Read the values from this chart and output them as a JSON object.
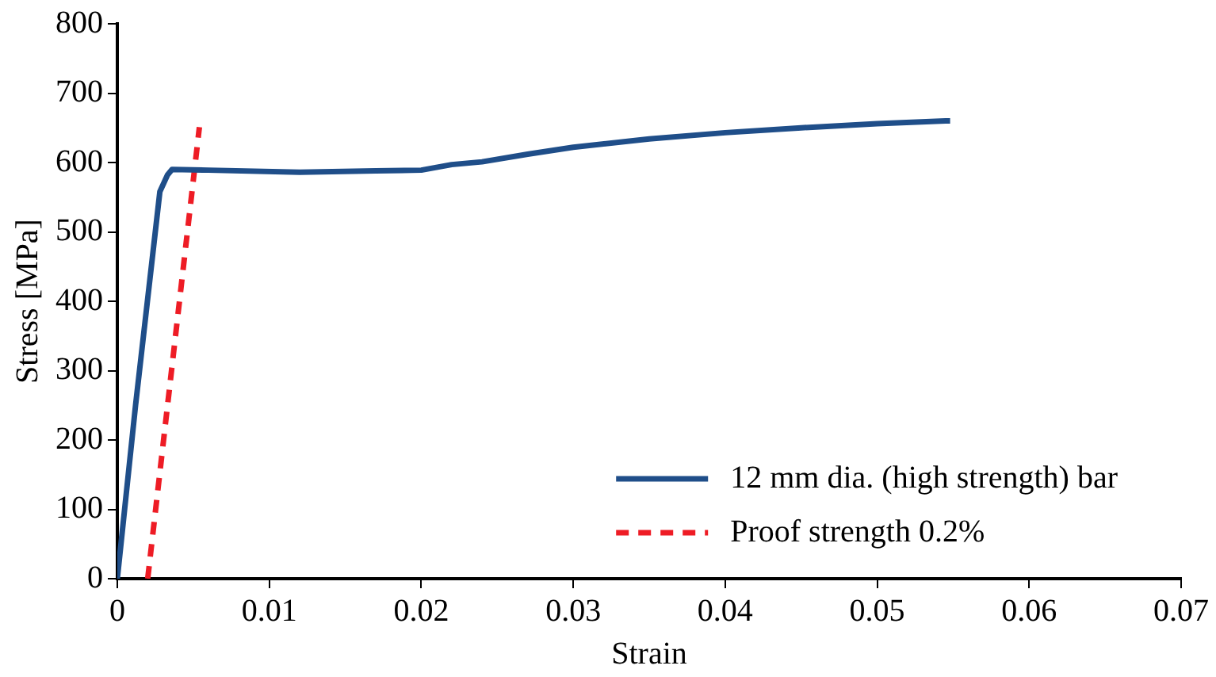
{
  "chart_data": {
    "type": "line",
    "xlabel": "Strain",
    "ylabel": "Stress [MPa]",
    "xlim": [
      0,
      0.07
    ],
    "xticks": [
      0,
      0.01,
      0.02,
      0.03,
      0.04,
      0.05,
      0.06,
      0.07
    ],
    "ylim": [
      0,
      800
    ],
    "yticks": [
      0,
      100,
      200,
      300,
      400,
      500,
      600,
      700,
      800
    ],
    "grid": false,
    "legend": "bottom right",
    "marker": "none",
    "series": [
      {
        "name": "12 mm dia. (high strength) bar",
        "color": "#1f4e89",
        "line_style": "solid",
        "x": [
          0,
          0.0012,
          0.0028,
          0.0033,
          0.0036,
          0.006,
          0.012,
          0.017,
          0.02,
          0.022,
          0.024,
          0.027,
          0.03,
          0.035,
          0.04,
          0.045,
          0.05,
          0.0545,
          0.0548
        ],
        "values": [
          0,
          250,
          558,
          582,
          590,
          589,
          586,
          588,
          589,
          597,
          601,
          612,
          622,
          634,
          643,
          650,
          656,
          660,
          660
        ]
      },
      {
        "name": "Proof strength 0.2%",
        "color": "#ee1c25",
        "line_style": "dashed",
        "x": [
          0.002,
          0.0054
        ],
        "values": [
          0,
          651
        ]
      }
    ]
  }
}
